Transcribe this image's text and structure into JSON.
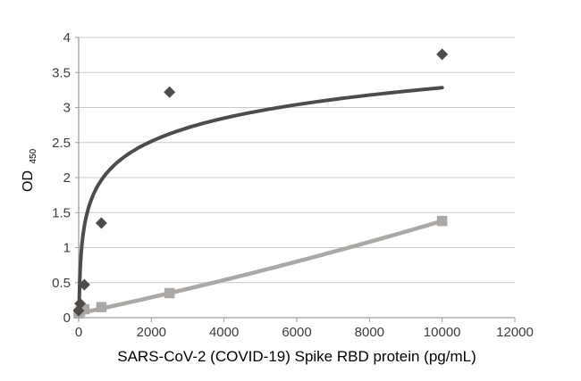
{
  "figure": {
    "background": "#ffffff"
  },
  "chart_data": {
    "type": "scatter",
    "title": "",
    "xlabel": "SARS-CoV-2 (COVID-19) Spike RBD protein (pg/mL)",
    "ylabel": "OD",
    "ylabel_subscript": "450",
    "xlim": [
      0,
      12000
    ],
    "ylim": [
      0,
      4
    ],
    "x_ticks": [
      "0",
      "2000",
      "4000",
      "6000",
      "8000",
      "10000",
      "12000"
    ],
    "y_ticks": [
      "0",
      "0.5",
      "1",
      "1.5",
      "2",
      "2.5",
      "3",
      "3.5",
      "4"
    ],
    "grid": "horizontal-only",
    "legend": "none",
    "colors": {
      "gridline": "#c9c9c9",
      "axis": "#9e9e9e",
      "tick_text": "#3c3c3c",
      "title_text": "#262626",
      "series_dark": "#4e4b49",
      "series_gray": "#aaa7a4"
    },
    "series": [
      {
        "id": "dark-diamonds",
        "label": "high-signal series (dark diamonds, logarithmic fit)",
        "marker": "diamond",
        "color": "#4e4b49",
        "line_width": 4,
        "x": [
          0,
          39,
          156,
          625,
          2500,
          10000
        ],
        "y": [
          0.1,
          0.2,
          0.47,
          1.35,
          3.22,
          3.76
        ],
        "trendline": {
          "type": "logarithmic",
          "a": 0.476,
          "b": -1.1,
          "x_start": 10.5,
          "x_end": 10000
        }
      },
      {
        "id": "gray-squares",
        "label": "low-signal series (gray squares, quadratic fit)",
        "marker": "square",
        "color": "#aaa7a4",
        "line_width": 4.5,
        "x": [
          0,
          39,
          156,
          625,
          2500,
          10000
        ],
        "y": [
          0.06,
          0.09,
          0.12,
          0.15,
          0.35,
          1.38
        ],
        "trendline": {
          "type": "quadratic",
          "a": 2.13e-09,
          "b": 0.0001107,
          "c": 0.06,
          "x_start": 0,
          "x_end": 10000
        }
      }
    ]
  }
}
